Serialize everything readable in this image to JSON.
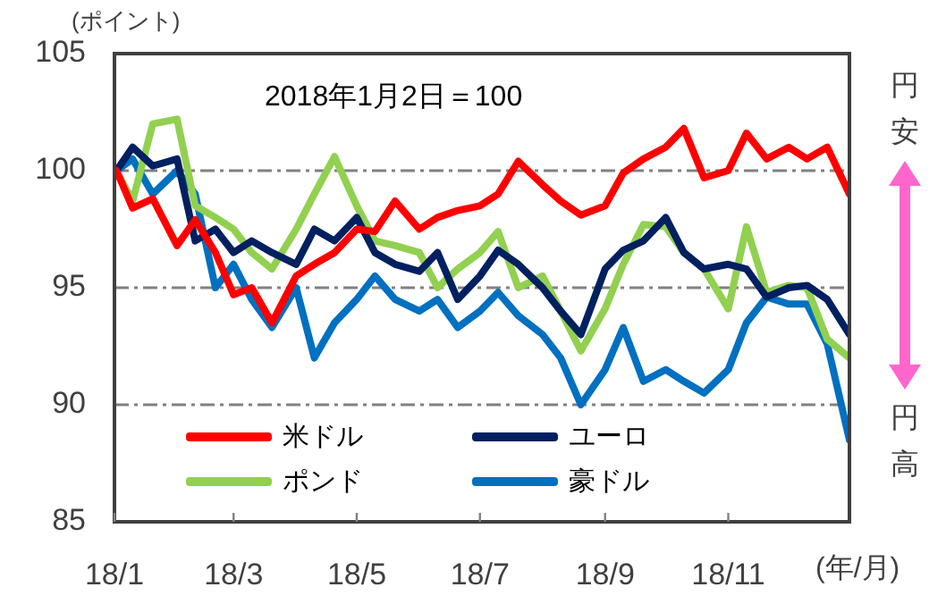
{
  "chart_data": {
    "type": "line",
    "ylabel": "(ポイント)",
    "xlabel": "(年/月)",
    "annotations": [
      "2018年1月2日＝100",
      "円安",
      "円高"
    ],
    "x": [
      "2018-01-02",
      "2018-01-10",
      "2018-01-20",
      "2018-02-01",
      "2018-02-10",
      "2018-02-20",
      "2018-03-01",
      "2018-03-10",
      "2018-03-20",
      "2018-04-01",
      "2018-04-10",
      "2018-04-20",
      "2018-05-01",
      "2018-05-10",
      "2018-05-20",
      "2018-06-01",
      "2018-06-10",
      "2018-06-20",
      "2018-07-01",
      "2018-07-10",
      "2018-07-20",
      "2018-08-01",
      "2018-08-10",
      "2018-08-20",
      "2018-09-01",
      "2018-09-10",
      "2018-09-20",
      "2018-10-01",
      "2018-10-10",
      "2018-10-20",
      "2018-11-01",
      "2018-11-10",
      "2018-11-20",
      "2018-12-01",
      "2018-12-10",
      "2018-12-20",
      "2018-12-31"
    ],
    "series": [
      {
        "name": "米ドル",
        "color": "#ff0000",
        "values": [
          100,
          98.4,
          98.8,
          96.8,
          97.9,
          96.5,
          94.7,
          95,
          93.5,
          95.5,
          96,
          96.5,
          97.5,
          97.4,
          98.7,
          97.5,
          98,
          98.3,
          98.5,
          99,
          100.4,
          99.4,
          98.7,
          98.1,
          98.5,
          99.9,
          100.5,
          101,
          101.8,
          99.7,
          100,
          101.6,
          100.5,
          101,
          100.5,
          101,
          99
        ]
      },
      {
        "name": "ユーロ",
        "color": "#002060",
        "values": [
          100,
          101,
          100.2,
          100.5,
          97,
          97.5,
          96.5,
          97,
          96.5,
          96,
          97.5,
          97,
          98,
          96.5,
          96,
          95.7,
          96.5,
          94.5,
          95.5,
          96.6,
          96,
          95,
          94,
          93,
          95.8,
          96.6,
          97,
          98,
          96.5,
          95.8,
          96,
          95.8,
          94.6,
          95,
          95.1,
          94.5,
          93
        ]
      },
      {
        "name": "ポンド",
        "color": "#92d050",
        "values": [
          100,
          98.7,
          102,
          102.2,
          98.5,
          98,
          97.5,
          96.5,
          95.8,
          97.5,
          99,
          100.6,
          98.5,
          97,
          96.8,
          96.5,
          95,
          95.8,
          96.5,
          97.4,
          95,
          95.5,
          94,
          92.3,
          94.1,
          96,
          97.7,
          97.6,
          96.5,
          95.8,
          94.1,
          97.6,
          94.8,
          95.1,
          95,
          92.8,
          92
        ]
      },
      {
        "name": "豪ドル",
        "color": "#0070c0",
        "values": [
          100,
          100.5,
          99,
          100,
          99,
          95,
          96,
          94.5,
          93.3,
          95,
          92,
          93.5,
          94.5,
          95.5,
          94.5,
          94,
          94.5,
          93.3,
          94,
          94.8,
          93.8,
          93,
          92,
          90,
          91.5,
          93.3,
          91,
          91.5,
          91,
          90.5,
          91.5,
          93.5,
          94.6,
          94.3,
          94.3,
          92.6,
          88.5
        ]
      }
    ],
    "xlim": [
      "2018-01-01",
      "2018-12-31"
    ],
    "xticks": [
      {
        "value": "2018-01-01",
        "label": "18/1"
      },
      {
        "value": "2018-03-01",
        "label": "18/3"
      },
      {
        "value": "2018-05-01",
        "label": "18/5"
      },
      {
        "value": "2018-07-01",
        "label": "18/7"
      },
      {
        "value": "2018-09-01",
        "label": "18/9"
      },
      {
        "value": "2018-11-01",
        "label": "18/11"
      }
    ],
    "ylim": [
      85,
      105
    ],
    "yticks": [
      85,
      90,
      95,
      100,
      105
    ],
    "grid": "y",
    "legend": "bottom left",
    "marker": "none",
    "line_style": "solid"
  }
}
